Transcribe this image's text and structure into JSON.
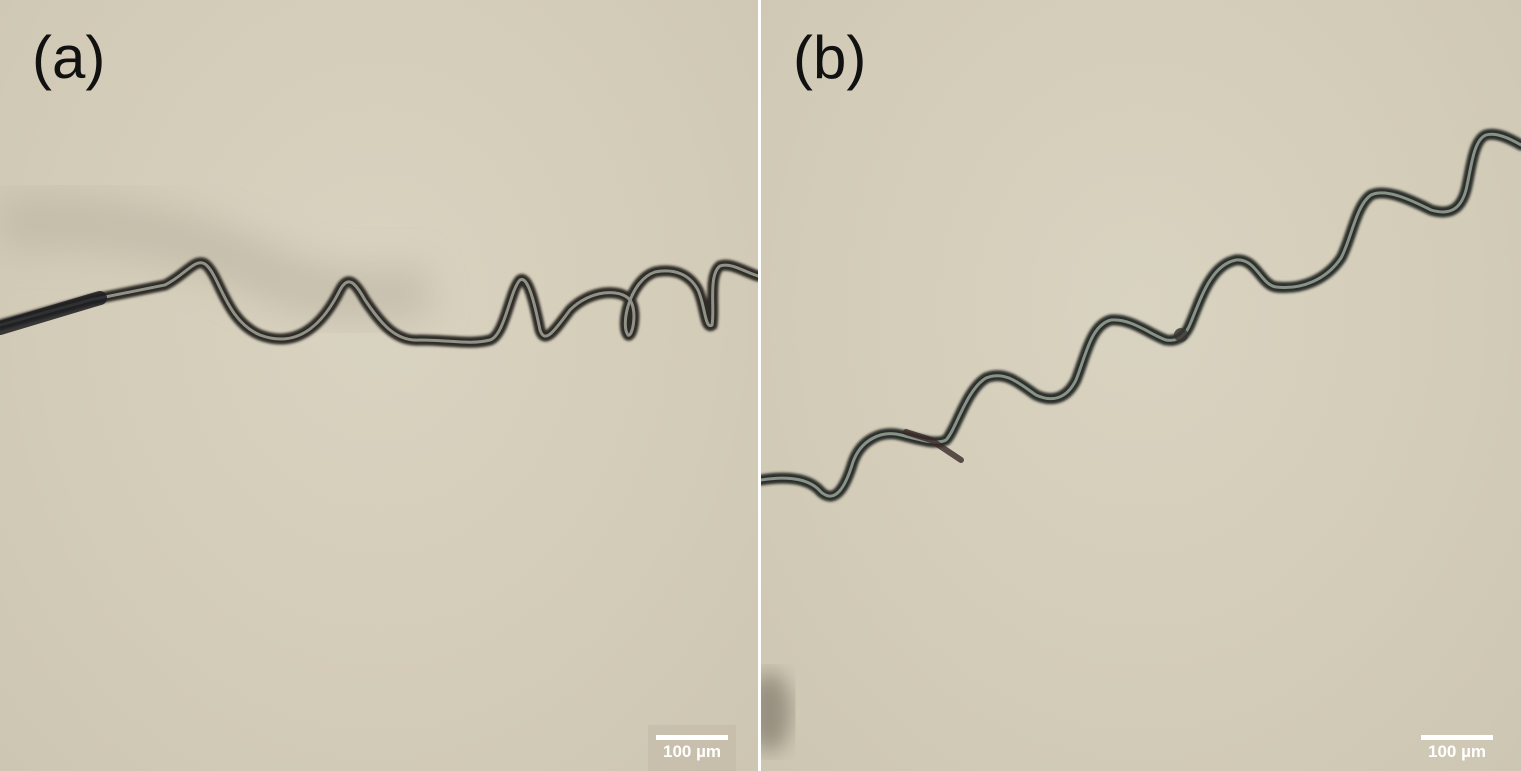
{
  "panels": [
    {
      "label": "(a)",
      "scale_label": "100 µm"
    },
    {
      "label": "(b)",
      "scale_label": "100 µm"
    }
  ],
  "colors": {
    "background": "#d4cdb9",
    "wire_dark": "#2f2e2a",
    "wire_light": "#8f9184",
    "label_text": "#111111",
    "scale_text": "#ffffff"
  }
}
